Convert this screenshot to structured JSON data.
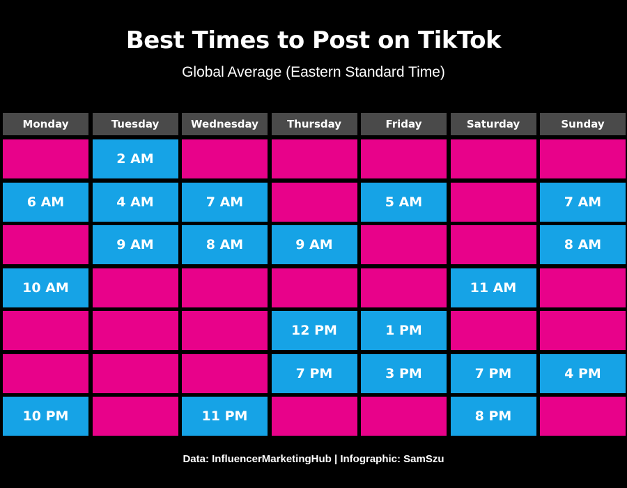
{
  "title": "Best Times to Post on TikTok",
  "subtitle": "Global Average (Eastern Standard Time)",
  "footer": "Data: InfluencerMarketingHub | Infographic: SamSzu",
  "colors": {
    "background": "#000000",
    "header": "#4a4a4a",
    "post": "#16a3e6",
    "empty": "#e8028a"
  },
  "chart_data": {
    "type": "table",
    "title": "Best Times to Post on TikTok",
    "subtitle": "Global Average (Eastern Standard Time)",
    "columns": [
      "Monday",
      "Tuesday",
      "Wednesday",
      "Thursday",
      "Friday",
      "Saturday",
      "Sunday"
    ],
    "rows": [
      [
        "",
        "2 AM",
        "",
        "",
        "",
        "",
        ""
      ],
      [
        "6 AM",
        "4 AM",
        "7 AM",
        "",
        "5 AM",
        "",
        "7 AM"
      ],
      [
        "",
        "9 AM",
        "8 AM",
        "9 AM",
        "",
        "",
        "8 AM"
      ],
      [
        "10 AM",
        "",
        "",
        "",
        "",
        "11 AM",
        ""
      ],
      [
        "",
        "",
        "",
        "12 PM",
        "1 PM",
        "",
        ""
      ],
      [
        "",
        "",
        "",
        "7 PM",
        "3 PM",
        "7 PM",
        "4 PM"
      ],
      [
        "10 PM",
        "",
        "11 PM",
        "",
        "",
        "8 PM",
        ""
      ]
    ]
  }
}
